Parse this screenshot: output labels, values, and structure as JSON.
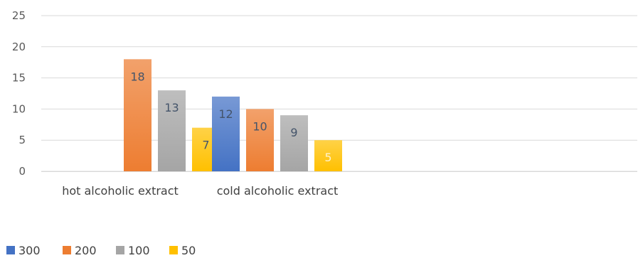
{
  "chart_data": {
    "type": "bar",
    "title": "",
    "xlabel": "",
    "ylabel": "",
    "categories": [
      "hot alcoholic extract",
      "cold alcoholic extract"
    ],
    "ylim": [
      0,
      25
    ],
    "yticks": [
      0,
      5,
      10,
      15,
      20,
      25
    ],
    "grid": true,
    "legend_position": "bottom-left",
    "series": [
      {
        "name": "300",
        "values": [
          0,
          12
        ],
        "color": "#4472C4",
        "label_color": "#44546A"
      },
      {
        "name": "200",
        "values": [
          18,
          10
        ],
        "color": "#ED7D31",
        "label_color": "#44546A"
      },
      {
        "name": "100",
        "values": [
          13,
          9
        ],
        "color": "#A5A5A5",
        "label_color": "#44546A"
      },
      {
        "name": "50",
        "values": [
          7,
          5
        ],
        "color": "#FFC000",
        "label_color": "#44546A"
      }
    ],
    "shown_labels": [
      [
        null,
        "12"
      ],
      [
        "18",
        "10"
      ],
      [
        "13",
        "9"
      ],
      [
        "7",
        "5"
      ]
    ]
  }
}
